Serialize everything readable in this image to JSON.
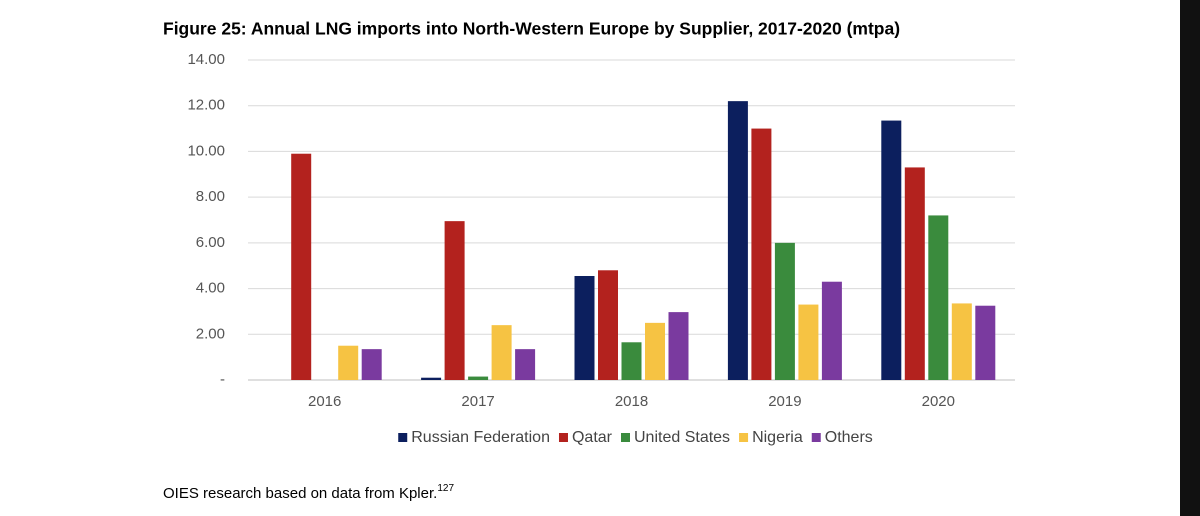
{
  "chart_data": {
    "type": "bar",
    "title": "Figure 25: Annual LNG imports into North-Western Europe by Supplier, 2017-2020 (mtpa)",
    "categories": [
      "2016",
      "2017",
      "2018",
      "2019",
      "2020"
    ],
    "series": [
      {
        "name": "Russian Federation",
        "color": "#0c1f5e",
        "values": [
          0,
          0.1,
          4.55,
          12.2,
          11.35
        ]
      },
      {
        "name": "Qatar",
        "color": "#b3221e",
        "values": [
          9.9,
          6.95,
          4.8,
          11.0,
          9.3
        ]
      },
      {
        "name": "United States",
        "color": "#3a8b3d",
        "values": [
          0,
          0.15,
          1.65,
          6.0,
          7.2
        ]
      },
      {
        "name": "Nigeria",
        "color": "#f6c343",
        "values": [
          1.5,
          2.4,
          2.5,
          3.3,
          3.35
        ]
      },
      {
        "name": "Others",
        "color": "#7a3a9f",
        "values": [
          1.35,
          1.35,
          2.97,
          4.3,
          3.25
        ]
      }
    ],
    "ylim": [
      0,
      14
    ],
    "yticks": [
      {
        "value": 0,
        "label": "-"
      },
      {
        "value": 2,
        "label": "2.00"
      },
      {
        "value": 4,
        "label": "4.00"
      },
      {
        "value": 6,
        "label": "6.00"
      },
      {
        "value": 8,
        "label": "8.00"
      },
      {
        "value": 10,
        "label": "10.00"
      },
      {
        "value": 12,
        "label": "12.00"
      },
      {
        "value": 14,
        "label": "14.00"
      }
    ],
    "grid": true,
    "legend": "bottom",
    "source": {
      "text": "OIES research based on data from Kpler.",
      "superscript": "127"
    }
  }
}
